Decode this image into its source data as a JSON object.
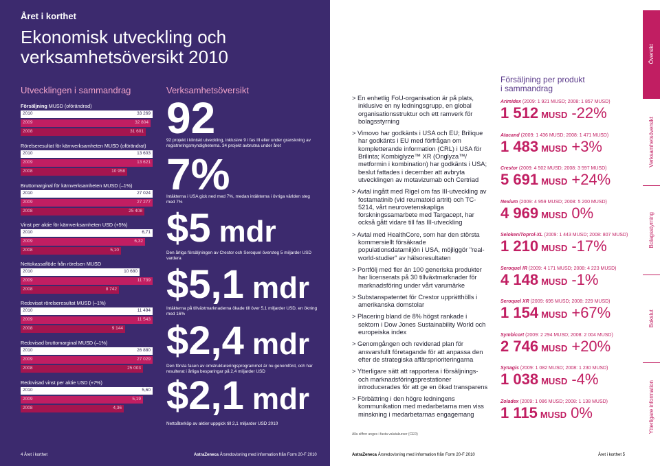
{
  "header": {
    "section": "Året i korthet",
    "title_line1": "Ekonomisk utveckling och",
    "title_line2": "verksamhetsöversikt 2010"
  },
  "left": {
    "title": "Utvecklingen i sammandrag",
    "metrics": [
      {
        "bold": "Försäljning",
        "rest": " MUSD (oförändrad)",
        "bars": [
          {
            "year": "2010",
            "value": "33 269",
            "frac": 1.0
          },
          {
            "year": "2009",
            "value": "32 804",
            "frac": 0.986
          },
          {
            "year": "2008",
            "value": "31 601",
            "frac": 0.95
          }
        ]
      },
      {
        "bold": "",
        "rest": "Rörelseresultat för kärnverksamheten MUSD (oförändrat)",
        "bars": [
          {
            "year": "2010",
            "value": "13 603",
            "frac": 1.0
          },
          {
            "year": "2009",
            "value": "13 621",
            "frac": 1.0
          },
          {
            "year": "2008",
            "value": "10 958",
            "frac": 0.805
          }
        ]
      },
      {
        "bold": "",
        "rest": "Bruttomarginal för kärnverksamheten MUSD (–1%)",
        "bars": [
          {
            "year": "2010",
            "value": "27 024",
            "frac": 1.0
          },
          {
            "year": "2009",
            "value": "27 277",
            "frac": 1.0
          },
          {
            "year": "2008",
            "value": "25 408",
            "frac": 0.94
          }
        ]
      },
      {
        "bold": "",
        "rest": "Vinst per aktie för kärnverksamheten USD (+5%)",
        "bars": [
          {
            "year": "2010",
            "value": "6,71",
            "frac": 1.0
          },
          {
            "year": "2009",
            "value": "6,32",
            "frac": 0.942
          },
          {
            "year": "2008",
            "value": "5,10",
            "frac": 0.76
          }
        ]
      },
      {
        "bold": "",
        "rest": "Nettokassaflöde från rörelsen MUSD",
        "bars": [
          {
            "year": "2010",
            "value": "10 680",
            "frac": 0.9
          },
          {
            "year": "2009",
            "value": "11 739",
            "frac": 1.0
          },
          {
            "year": "2008",
            "value": "8 742",
            "frac": 0.745
          }
        ]
      },
      {
        "bold": "",
        "rest": "Redovisat rörelseresultat  MUSD (–1%)",
        "bars": [
          {
            "year": "2010",
            "value": "11 494",
            "frac": 1.0
          },
          {
            "year": "2009",
            "value": "11 543",
            "frac": 1.0
          },
          {
            "year": "2008",
            "value": "9 144",
            "frac": 0.79
          }
        ]
      },
      {
        "bold": "",
        "rest": "Redovisad bruttomarginal MUSD (–1%)",
        "bars": [
          {
            "year": "2010",
            "value": "26 880",
            "frac": 1.0
          },
          {
            "year": "2009",
            "value": "27 029",
            "frac": 1.0
          },
          {
            "year": "2008",
            "value": "25 003",
            "frac": 0.925
          }
        ]
      },
      {
        "bold": "",
        "rest": "Redovisad vinst per aktie USD (+7%)",
        "bars": [
          {
            "year": "2010",
            "value": "5,60",
            "frac": 1.0
          },
          {
            "year": "2009",
            "value": "5,19",
            "frac": 0.927
          },
          {
            "year": "2008",
            "value": "4,36",
            "frac": 0.78
          }
        ]
      }
    ]
  },
  "middle": {
    "title": "Verksamhetsöversikt",
    "items": [
      {
        "num": "92",
        "unit": "",
        "desc": "92 projekt i kliniskt utveckling, inklusive 9 i fas III eller under granskning av registreringsmyndigheterna. 34 projekt avbrutna under året"
      },
      {
        "num": "7%",
        "unit": "",
        "desc": "Intäkterna i USA gick ned med 7%, medan intäkterna i övriga världen steg med 7%"
      },
      {
        "num": "$5",
        "unit": "mdr",
        "desc": "Den årliga försäljningen av Crestor och Seroquel översteg 5 miljarder USD vardera"
      },
      {
        "num": "$5,1",
        "unit": "mdr",
        "desc": "Intäkterna på tillväxtmarknaderna ökade till över 5,1 miljarder USD, en ökning med 16%"
      },
      {
        "num": "$2,4",
        "unit": "mdr",
        "desc": "Den första fasen av omstruktureringsprogrammet är nu genomförd, och har resulterat i årliga besparingar på 2,4 miljarder USD"
      },
      {
        "num": "$2,1",
        "unit": "mdr",
        "desc": "Nettoåterköp av aktier uppgick till 2,1 miljarder USD 2010"
      }
    ]
  },
  "bullets": [
    "> En enhetlig FoU-organisation är på plats, inklusive en ny ledningsgrupp, en global organisationsstruktur och ett ramverk för bolagsstyrning",
    "> Vimovo har godkänts i USA och EU; Brilique har godkänts i EU med förfrågan om kompletterande information (CRL) i USA för Brilinta; Kombiglyze™ XR (Onglyza™/ metformin i kombination) har godkänts i USA; beslut fattades i december att avbryta utvecklingen av motavizumab och Certriad",
    "> Avtal ingått med Rigel om fas III-utveckling av fostamatinib (vid reumatoid artrit) och TC-5214, vårt neurovetenskapliga forskningssamarbete med Targacept, har också gått vidare till fas III-utveckling",
    "> Avtal med HealthCore, som har den största kommersiellt försäkrade populationsdatamiljön i USA, möjliggör \"real-world-studier\" av hälsoresultaten",
    "> Portfölj med fler än 100 generiska produkter har licenserats på 30 tillväxtmarknader för marknadsföring under vårt varumärke",
    "> Substanspatentet för Crestor upprätthölls i amerikanska domstolar",
    "> Placering bland de 8% högst rankade i sektorn i Dow Jones Sustainability World och europeiska index",
    "> Genomgången och reviderad plan för ansvarsfullt företagande för att anpassa den efter de strategiska affärsprioriteringarna",
    "> Ytterligare sätt att rapportera i försäljnings- och marknadsföringsprestationer introducerades för att ge en ökad transparens",
    "> Förbättring i den högre ledningens kommunikation med medarbetarna men viss minskning i medarbetarnas engagemang"
  ],
  "footnote": "Alla siffror anges i fasta valutakurser (CER)",
  "products": {
    "title_line1": "Försäljning per produkt",
    "title_line2": "i sammandrag",
    "items": [
      {
        "name": "Arimidex",
        "sub": " (2009: 1 921 MUSD; 2008: 1 857 MUSD)",
        "value": "1 512",
        "unit": "MUSD",
        "change": "-22%"
      },
      {
        "name": "Atacand",
        "sub": " (2009: 1 436 MUSD; 2008: 1 471 MUSD)",
        "value": "1 483",
        "unit": "MUSD",
        "change": "+3%"
      },
      {
        "name": "Crestor",
        "sub": " (2009: 4 502 MUSD; 2008: 3 597 MUSD)",
        "value": "5 691",
        "unit": "MUSD",
        "change": "+24%"
      },
      {
        "name": "Nexium",
        "sub": " (2009: 4 959 MUSD; 2008: 5 200 MUSD)",
        "value": "4 969",
        "unit": "MUSD",
        "change": "0%"
      },
      {
        "name": "Seloken/Toprol-XL",
        "sub": " (2009: 1 443 MUSD; 2008: 807 MUSD)",
        "value": "1 210",
        "unit": "MUSD",
        "change": "-17%"
      },
      {
        "name": "Seroquel IR",
        "sub": " (2009: 4 171 MUSD; 2008: 4 223 MUSD)",
        "value": "4 148",
        "unit": "MUSD",
        "change": "-1%"
      },
      {
        "name": "Seroquel XR",
        "sub": " (2009: 695 MUSD; 2008: 229 MUSD)",
        "value": "1 154",
        "unit": "MUSD",
        "change": "+67%"
      },
      {
        "name": "Symbicort",
        "sub": " (2009: 2 294 MUSD; 2008: 2 004 MUSD)",
        "value": "2 746",
        "unit": "MUSD",
        "change": "+20%"
      },
      {
        "name": "Synagis",
        "sub": " (2009: 1 082 MUSD; 2008: 1 230 MUSD)",
        "value": "1 038",
        "unit": "MUSD",
        "change": "-4%"
      },
      {
        "name": "Zoladex",
        "sub": " (2009: 1 086 MUSD; 2008: 1 138 MUSD)",
        "value": "1 115",
        "unit": "MUSD",
        "change": "0%"
      }
    ]
  },
  "tabs": [
    "Översikt",
    "Verksamhetsöversikt",
    "Bolagsstyrning",
    "Bokslut",
    "Ytterligare information"
  ],
  "footer": {
    "left_page": "4 Året i korthet",
    "brand": "AstraZeneca",
    "doc": " Årsredovisning med information från Form 20-F 2010",
    "right_page": "Året i korthet 5"
  },
  "colors": {
    "purple": "#3c2a6e",
    "magenta": "#c11e62",
    "pink": "#f0a3c9"
  }
}
